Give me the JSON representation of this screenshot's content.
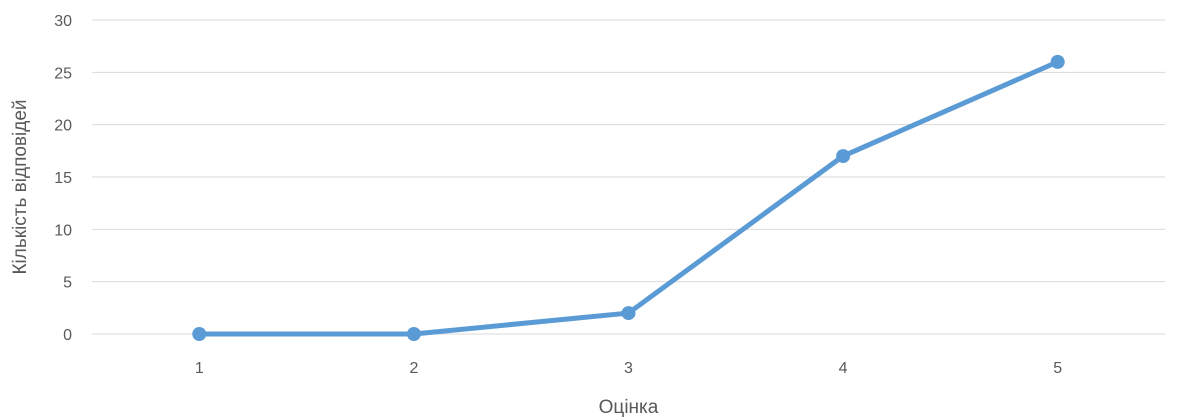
{
  "chart_data": {
    "type": "line",
    "title": "",
    "xlabel": "Оцінка",
    "ylabel": "Кількість відповідей",
    "categories": [
      "1",
      "2",
      "3",
      "4",
      "5"
    ],
    "series": [
      {
        "values": [
          0,
          0,
          2,
          17,
          26
        ],
        "color": "#5b9bd5"
      }
    ],
    "ylim": [
      0,
      30
    ],
    "yticks": [
      0,
      5,
      10,
      15,
      20,
      25,
      30
    ],
    "grid": "horizontal",
    "legend": "none"
  }
}
